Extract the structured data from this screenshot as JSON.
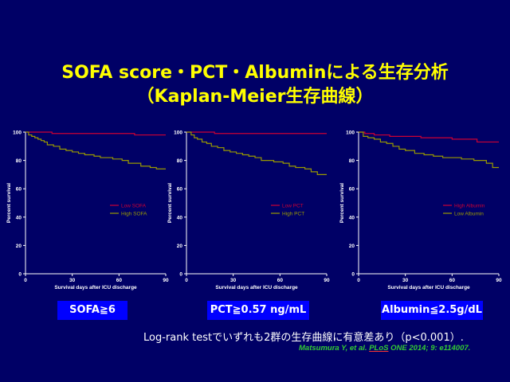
{
  "title": {
    "line1": "SOFA score・PCT・Albuminによる生存分析",
    "line2": "（Kaplan-Meier生存曲線）"
  },
  "footer": {
    "note": "Log-rank testでいずれも2群の生存曲線に有意差あり（p<0.001）.",
    "citation_authors": "Matsumura Y, et al. ",
    "citation_journal": "PLoS",
    "citation_rest": " ONE 2014; 9: e114007."
  },
  "colors": {
    "background": "#000066",
    "title": "#ffff00",
    "low_series": "#cc0033",
    "high_series": "#999900",
    "tag_bg": "#0000ff",
    "citation": "#33cc33"
  },
  "chart_data": [
    {
      "type": "line",
      "tag": "SOFA≧6",
      "xlabel": "Survival days after ICU discharge",
      "ylabel": "Percent survival",
      "xlim": [
        0,
        90
      ],
      "ylim": [
        0,
        100
      ],
      "xticks": [
        0,
        30,
        60,
        90
      ],
      "yticks": [
        0,
        20,
        40,
        60,
        80,
        100
      ],
      "legend_position": "right-middle",
      "series": [
        {
          "name": "Low SOFA",
          "color": "#cc0033",
          "x": [
            0,
            17,
            17,
            70,
            70,
            90
          ],
          "y": [
            100,
            100,
            99,
            99,
            98,
            98
          ]
        },
        {
          "name": "High SOFA",
          "color": "#999900",
          "x": [
            0,
            2,
            4,
            6,
            8,
            10,
            12,
            14,
            18,
            22,
            26,
            30,
            34,
            38,
            44,
            48,
            52,
            56,
            62,
            66,
            74,
            80,
            84,
            90
          ],
          "y": [
            100,
            98,
            97,
            96,
            95,
            94,
            93,
            91,
            90,
            88,
            87,
            86,
            85,
            84,
            83,
            82,
            82,
            81,
            80,
            78,
            76,
            75,
            74,
            74
          ]
        }
      ]
    },
    {
      "type": "line",
      "tag": "PCT≧0.57 ng/mL",
      "xlabel": "Survival days after ICU discharge",
      "ylabel": "Percent survival",
      "xlim": [
        0,
        90
      ],
      "ylim": [
        0,
        100
      ],
      "xticks": [
        0,
        30,
        60,
        90
      ],
      "yticks": [
        0,
        20,
        40,
        60,
        80,
        100
      ],
      "legend_position": "right-middle",
      "series": [
        {
          "name": "Low PCT",
          "color": "#cc0033",
          "x": [
            0,
            18,
            18,
            90
          ],
          "y": [
            100,
            100,
            99,
            99
          ]
        },
        {
          "name": "High PCT",
          "color": "#999900",
          "x": [
            0,
            3,
            5,
            7,
            10,
            13,
            16,
            20,
            24,
            28,
            32,
            36,
            40,
            44,
            48,
            52,
            56,
            62,
            66,
            70,
            76,
            80,
            84,
            90
          ],
          "y": [
            100,
            98,
            96,
            95,
            93,
            92,
            90,
            89,
            87,
            86,
            85,
            84,
            83,
            82,
            80,
            80,
            79,
            78,
            76,
            75,
            74,
            72,
            70,
            70
          ]
        }
      ]
    },
    {
      "type": "line",
      "tag": "Albumin≦2.5g/dL",
      "xlabel": "Survival days after ICU discharge",
      "ylabel": "Percent survival",
      "xlim": [
        0,
        90
      ],
      "ylim": [
        0,
        100
      ],
      "xticks": [
        0,
        30,
        60,
        90
      ],
      "yticks": [
        0,
        20,
        40,
        60,
        80,
        100
      ],
      "legend_position": "right-middle",
      "series": [
        {
          "name": "High Albumin",
          "color": "#cc0033",
          "x": [
            0,
            4,
            4,
            10,
            10,
            20,
            20,
            40,
            40,
            60,
            60,
            76,
            76,
            90
          ],
          "y": [
            100,
            100,
            99,
            99,
            98,
            98,
            97,
            97,
            96,
            96,
            95,
            95,
            93,
            93
          ]
        },
        {
          "name": "Low Albumin",
          "color": "#999900",
          "x": [
            0,
            3,
            6,
            10,
            14,
            18,
            22,
            26,
            30,
            36,
            42,
            48,
            54,
            60,
            66,
            70,
            74,
            78,
            82,
            86,
            90
          ],
          "y": [
            100,
            97,
            96,
            95,
            93,
            92,
            90,
            88,
            87,
            85,
            84,
            83,
            82,
            82,
            81,
            81,
            80,
            80,
            78,
            75,
            75
          ]
        }
      ]
    }
  ]
}
